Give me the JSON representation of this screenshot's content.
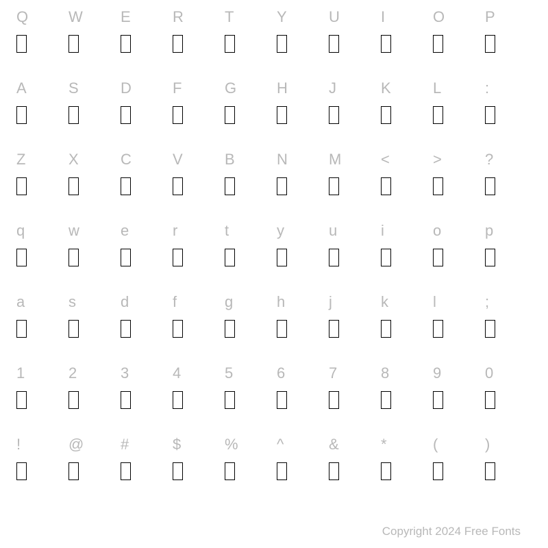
{
  "rows": [
    [
      "Q",
      "W",
      "E",
      "R",
      "T",
      "Y",
      "U",
      "I",
      "O",
      "P"
    ],
    [
      "A",
      "S",
      "D",
      "F",
      "G",
      "H",
      "J",
      "K",
      "L",
      ":"
    ],
    [
      "Z",
      "X",
      "C",
      "V",
      "B",
      "N",
      "M",
      "<",
      ">",
      "?"
    ],
    [
      "q",
      "w",
      "e",
      "r",
      "t",
      "y",
      "u",
      "i",
      "o",
      "p"
    ],
    [
      "a",
      "s",
      "d",
      "f",
      "g",
      "h",
      "j",
      "k",
      "l",
      ";"
    ],
    [
      "1",
      "2",
      "3",
      "4",
      "5",
      "6",
      "7",
      "8",
      "9",
      "0"
    ],
    [
      "!",
      "@",
      "#",
      "$",
      "%",
      "^",
      "&",
      "*",
      "(",
      ")"
    ]
  ],
  "footer": "Copyright 2024 Free Fonts",
  "colors": {
    "background": "#ffffff",
    "label": "#b8b8b8",
    "glyph_border": "#000000",
    "footer": "#b8b8b8"
  },
  "typography": {
    "label_fontsize": 22,
    "footer_fontsize": 17
  },
  "glyph_box": {
    "width": 15,
    "height": 26,
    "border_width": 1.5
  }
}
